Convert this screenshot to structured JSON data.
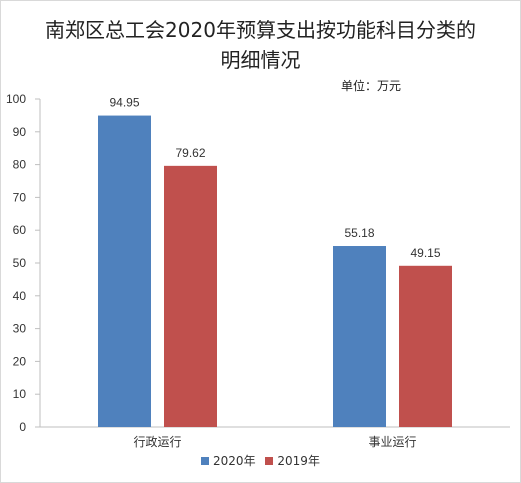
{
  "chart_data": {
    "type": "bar",
    "title_lines": [
      "南郑区总工会2020年预算支出按功能科目分类的",
      "明细情况"
    ],
    "unit_label": "单位：万元",
    "categories": [
      "行政运行",
      "事业运行"
    ],
    "series": [
      {
        "name": "2020年",
        "values": [
          94.95,
          55.18
        ],
        "color": "#4f81bd"
      },
      {
        "name": "2019年",
        "values": [
          79.62,
          49.15
        ],
        "color": "#c0504d"
      }
    ],
    "ylim": [
      0,
      100
    ],
    "yticks": [
      0,
      10,
      20,
      30,
      40,
      50,
      60,
      70,
      80,
      90,
      100
    ],
    "grid": false,
    "legend_position": "bottom"
  }
}
